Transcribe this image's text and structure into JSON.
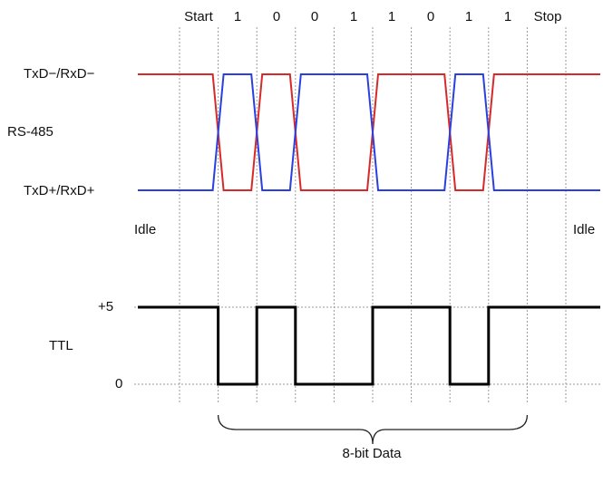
{
  "bit_labels": [
    "Start",
    "1",
    "0",
    "0",
    "1",
    "1",
    "0",
    "1",
    "1",
    "Stop"
  ],
  "rs485": {
    "label": "RS-485",
    "line_minus_label": "TxD−/RxD−",
    "line_plus_label": "TxD+/RxD+",
    "minus_color": "#d62a2a",
    "plus_color": "#2a3fe0"
  },
  "idle_left": "Idle",
  "idle_right": "Idle",
  "ttl": {
    "label": "TTL",
    "high_label": "+5",
    "low_label": "0",
    "color": "#000000"
  },
  "data_brace_label": "8-bit Data",
  "bit_levels_ttl": [
    1,
    0,
    1,
    0,
    0,
    1,
    1,
    0,
    1,
    1,
    1
  ]
}
